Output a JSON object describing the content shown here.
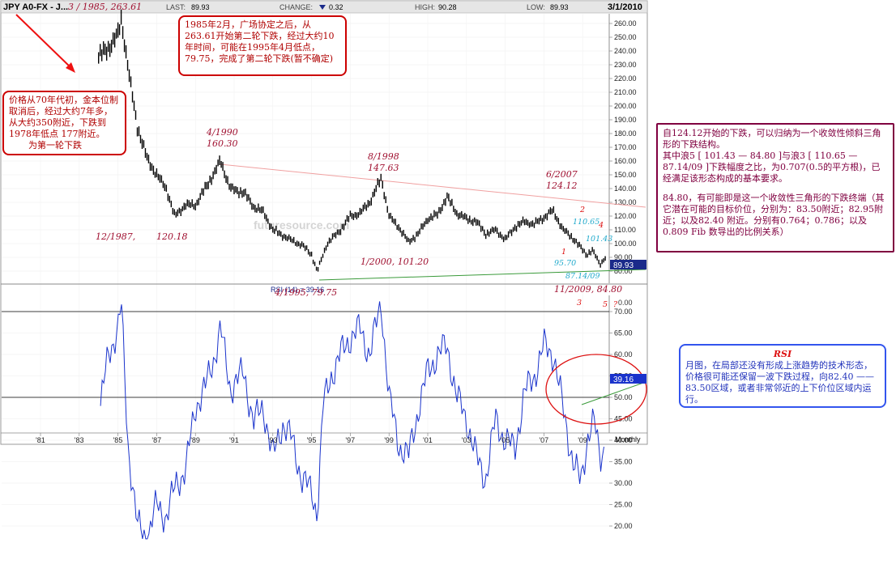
{
  "header": {
    "symbol": "JPY A0-FX - J...",
    "title_note": "3 / 1985,  263.61",
    "last_label": "LAST:",
    "last_value": "89.93",
    "change_label": "CHANGE:",
    "change_value": "0.32",
    "high_label": "HIGH:",
    "high_value": "90.28",
    "low_label": "LOW:",
    "low_value": "89.93",
    "date": "3/1/2010"
  },
  "price_axis_ticks": [
    "260.00",
    "250.00",
    "240.00",
    "230.00",
    "220.00",
    "210.00",
    "200.00",
    "190.00",
    "180.00",
    "170.00",
    "160.00",
    "150.00",
    "140.00",
    "130.00",
    "120.00",
    "110.00",
    "100.00",
    "90.00",
    "80.00"
  ],
  "last_price_flag": "89.93",
  "rsi_axis_ticks": [
    "70.00",
    "65.00",
    "60.00",
    "55.00",
    "50.00",
    "45.00",
    "40.00",
    "35.00",
    "30.00",
    "25.00",
    "20.00"
  ],
  "rsi_axis_top_label": "0.00",
  "rsi_flag": "39.16",
  "rsi_title": "RSI (14) = 39.16",
  "x_axis_ticks": [
    "'81",
    "'83",
    "'85",
    "'87",
    "'89",
    "'91",
    "'93",
    "'95",
    "'97",
    "'99",
    "'01",
    "'03",
    "'05",
    "'07",
    "'09"
  ],
  "x_axis_unit": "Monthly",
  "watermark": "futuresource.com",
  "colors": {
    "price": "#000000",
    "rsi": "#1a33cc",
    "resistance": "#f0a0a0",
    "support": "#3a9a3a",
    "annotation": "#a01030",
    "flag": "#1a2a8a"
  },
  "labels": {
    "p1990": "4/1990",
    "p1990v": "160.30",
    "p1987": "12/1987,",
    "p1987v": "120.18",
    "p1998": "8/1998",
    "p1998v": "147.63",
    "p2000": "1/2000,   101.20",
    "p2007": "6/2007",
    "p2007v": "124.12",
    "p1995": "4/1995, 79.75",
    "p2009": "11/2009,   84.80",
    "w110": "110.65",
    "w101": "101.43",
    "w95": "95.70",
    "w87": "87.14/09",
    "n1": "1",
    "n2": "2",
    "n3": "3",
    "n4": "4",
    "n5": "5",
    "nq": "?"
  },
  "annotations": {
    "box_1985": "1985年2月，广场协定之后，从263.61开始第二轮下跌，经过大约10年时间，可能在1995年4月低点，79.75，完成了第二轮下跌(暂不确定)",
    "box_70s_1": "价格从70年代初，金本位制取消后，经过大约7年多，从大约350附近，下跌到1978年低点 177附近。",
    "box_70s_2": "为第一轮下跌",
    "box_triangle_1": "自124.12开始的下跌，可以归纳为一个收敛性倾斜三角形的下跌结构。",
    "box_triangle_2": "其中浪5 [ 101.43 — 84.80 ]与浪3 [ 110.65 — 87.14/09 ]下跌幅度之比，为0.707(0.5的平方根)，已经满足该形态构成的基本要求。",
    "box_triangle_3": "84.80，有可能即是这一个收敛性三角形的下跌终端（其它潜在可能的目标价位，分别为：83.50附近；82.95附近；以及82.40 附近。分别有0.764；0.786；以及0.809 Fib 数导出的比例关系）",
    "rsi_title": "RSI",
    "rsi_text": "月图，在局部还没有形成上涨趋势的技术形态，价格很可能还保留一波下跌过程，向82.40 —— 83.50区域，或者非常邻近的上下价位区域内运行。"
  },
  "chart_data": [
    {
      "type": "line",
      "title": "JPY A0-FX",
      "series": [
        {
          "x": [
            1984.0,
            1984.5,
            1985.0,
            1985.17,
            1985.6,
            1986.0,
            1986.5,
            1987.0,
            1987.5,
            1987.92,
            1988.5,
            1989.0,
            1989.5,
            1990.0,
            1990.29,
            1990.8,
            1991.5,
            1992.0,
            1992.5,
            1993.0,
            1993.5,
            1994.0,
            1994.5,
            1995.0,
            1995.29,
            1995.8,
            1996.5,
            1997.0,
            1997.5,
            1998.0,
            1998.6,
            1999.0,
            1999.5,
            2000.0,
            2000.5,
            2001.0,
            2001.5,
            2002.0,
            2002.5,
            2003.0,
            2003.5,
            2004.0,
            2004.5,
            2005.0,
            2005.5,
            2006.0,
            2006.5,
            2007.0,
            2007.45,
            2008.0,
            2008.5,
            2008.9,
            2009.2,
            2009.5,
            2009.9,
            2010.17
          ],
          "values": [
            236,
            242,
            252,
            263.61,
            220,
            185,
            162,
            150,
            140,
            120.18,
            128,
            128,
            140,
            152,
            160.3,
            140,
            137,
            127,
            123,
            110,
            106,
            102,
            99,
            92,
            79.75,
            100,
            110,
            120,
            122,
            130,
            147.63,
            120,
            112,
            101.2,
            107,
            118,
            121,
            134,
            122,
            118,
            116,
            107,
            110,
            103,
            112,
            116,
            114,
            119,
            124.12,
            110,
            104,
            97,
            92,
            95,
            85,
            89.93
          ]
        }
      ],
      "ylim": [
        75,
        268
      ],
      "xlim": [
        1980.0,
        2010.2
      ]
    },
    {
      "type": "line",
      "title": "RSI (14) = 39.16",
      "series": [
        {
          "x": [
            1984.1,
            1984.5,
            1985.0,
            1985.17,
            1985.5,
            1986.0,
            1986.5,
            1987.0,
            1987.5,
            1988.0,
            1988.5,
            1989.0,
            1989.5,
            1990.0,
            1990.3,
            1990.8,
            1991.5,
            1992.0,
            1992.5,
            1993.0,
            1993.5,
            1994.0,
            1994.5,
            1995.0,
            1995.29,
            1995.6,
            1996.0,
            1996.5,
            1997.0,
            1997.5,
            1998.0,
            1998.6,
            1999.0,
            1999.5,
            2000.0,
            2000.5,
            2001.0,
            2001.5,
            2002.0,
            2002.5,
            2003.0,
            2003.5,
            2004.0,
            2004.5,
            2005.0,
            2005.5,
            2006.0,
            2006.5,
            2007.0,
            2007.5,
            2008.0,
            2008.5,
            2008.9,
            2009.3,
            2009.6,
            2009.9,
            2010.17
          ],
          "values": [
            48,
            60,
            66,
            72,
            40,
            20,
            17,
            25,
            22,
            30,
            33,
            48,
            52,
            60,
            66,
            52,
            56,
            44,
            48,
            36,
            44,
            40,
            31,
            28,
            23,
            48,
            55,
            60,
            64,
            66,
            60,
            72,
            50,
            39,
            36,
            47,
            56,
            60,
            62,
            50,
            45,
            36,
            31,
            45,
            40,
            38,
            51,
            55,
            62,
            60,
            47,
            35,
            30,
            42,
            44,
            36,
            39.16
          ]
        }
      ],
      "ylim": [
        17,
        73
      ]
    }
  ]
}
